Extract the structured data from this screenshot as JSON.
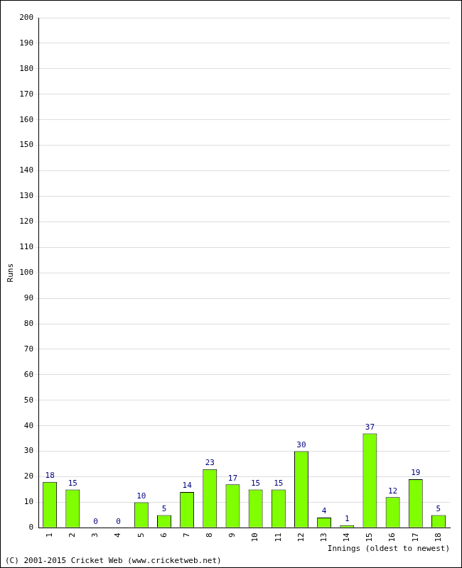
{
  "chart_data": {
    "type": "bar",
    "categories": [
      "1",
      "2",
      "3",
      "4",
      "5",
      "6",
      "7",
      "8",
      "9",
      "10",
      "11",
      "12",
      "13",
      "14",
      "15",
      "16",
      "17",
      "18"
    ],
    "values": [
      18,
      15,
      0,
      0,
      10,
      5,
      14,
      23,
      17,
      15,
      15,
      30,
      4,
      1,
      37,
      12,
      19,
      5
    ],
    "color": "#80ff00",
    "y_label": "Runs",
    "x_label": "Innings (oldest to newest)",
    "annotations": [
      "(C) 2001-2015 Cricket Web (www.cricketweb.net)"
    ],
    "ylim": [
      0,
      200
    ],
    "yticks": [
      0,
      10,
      20,
      30,
      40,
      50,
      60,
      70,
      80,
      90,
      100,
      110,
      120,
      130,
      140,
      150,
      160,
      170,
      180,
      190,
      200
    ],
    "grid": true,
    "data_labels": true
  }
}
